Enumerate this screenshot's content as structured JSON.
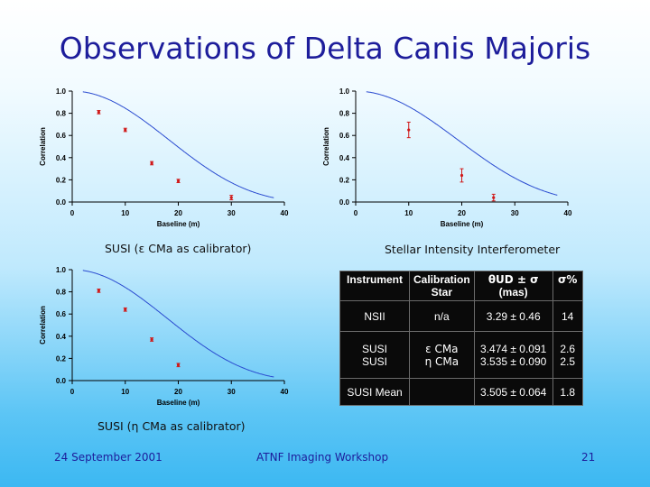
{
  "slide": {
    "title": "Observations of Delta Canis Majoris",
    "caption_susi_eps": "SUSI (ε CMa as calibrator)",
    "caption_sii": "Stellar Intensity Interferometer",
    "caption_susi_eta": "SUSI (η CMa as calibrator)",
    "footer_date": "24 September 2001",
    "footer_event": "ATNF Imaging Workshop",
    "footer_page": "21"
  },
  "colors": {
    "title": "#1d1d9b",
    "curve": "#2a4bd0",
    "points": "#d01818",
    "axis": "#000000"
  },
  "chart_data": [
    {
      "id": "susi-eps",
      "type": "scatter",
      "xlabel": "Baseline (m)",
      "ylabel": "Correlation",
      "xlim": [
        0,
        40
      ],
      "ylim": [
        0,
        1
      ],
      "xticks": [
        "0",
        "10",
        "20",
        "30",
        "40"
      ],
      "yticks": [
        "0.0",
        "0.2",
        "0.4",
        "0.6",
        "0.8",
        "1.0"
      ],
      "theta_mas": 3.474,
      "points": [
        {
          "x": 5,
          "y": 0.81,
          "err": 0.015
        },
        {
          "x": 10,
          "y": 0.65,
          "err": 0.015
        },
        {
          "x": 15,
          "y": 0.35,
          "err": 0.015
        },
        {
          "x": 20,
          "y": 0.19,
          "err": 0.015
        },
        {
          "x": 30,
          "y": 0.04,
          "err": 0.02
        }
      ]
    },
    {
      "id": "sii",
      "type": "scatter",
      "xlabel": "Baseline (m)",
      "ylabel": "Correlation",
      "xlim": [
        0,
        40
      ],
      "ylim": [
        0,
        1
      ],
      "xticks": [
        "0",
        "10",
        "20",
        "30",
        "40"
      ],
      "yticks": [
        "0.0",
        "0.2",
        "0.4",
        "0.6",
        "0.8",
        "1.0"
      ],
      "theta_mas": 3.29,
      "points": [
        {
          "x": 10,
          "y": 0.65,
          "err": 0.07
        },
        {
          "x": 20,
          "y": 0.24,
          "err": 0.06
        },
        {
          "x": 26,
          "y": 0.04,
          "err": 0.03
        }
      ]
    },
    {
      "id": "susi-eta",
      "type": "scatter",
      "xlabel": "Baseline (m)",
      "ylabel": "Correlation",
      "xlim": [
        0,
        40
      ],
      "ylim": [
        0,
        1
      ],
      "xticks": [
        "0",
        "10",
        "20",
        "30",
        "40"
      ],
      "yticks": [
        "0.0",
        "0.2",
        "0.4",
        "0.6",
        "0.8",
        "1.0"
      ],
      "theta_mas": 3.535,
      "points": [
        {
          "x": 5,
          "y": 0.81,
          "err": 0.015
        },
        {
          "x": 10,
          "y": 0.64,
          "err": 0.015
        },
        {
          "x": 15,
          "y": 0.37,
          "err": 0.015
        },
        {
          "x": 20,
          "y": 0.14,
          "err": 0.015
        }
      ]
    }
  ],
  "table": {
    "headers": {
      "instrument": "Instrument",
      "calibration_line1": "Calibration",
      "calibration_line2": "Star",
      "theta_line1": "θUD ± σ",
      "theta_line2": "(mas)",
      "sigma_pct": "σ%"
    },
    "rows": {
      "nsii": {
        "instrument": "NSII",
        "calibrator": "n/a",
        "theta": "3.29 ± 0.46",
        "pct": "14"
      },
      "susi_eps": {
        "instrument": "SUSI",
        "calibrator": "ε CMa",
        "theta": "3.474 ± 0.091",
        "pct": "2.6"
      },
      "susi_eta": {
        "instrument": "SUSI",
        "calibrator": "η CMa",
        "theta": "3.535 ± 0.090",
        "pct": "2.5"
      },
      "mean": {
        "instrument": "SUSI Mean",
        "calibrator": "",
        "theta": "3.505 ± 0.064",
        "pct": "1.8"
      }
    }
  }
}
